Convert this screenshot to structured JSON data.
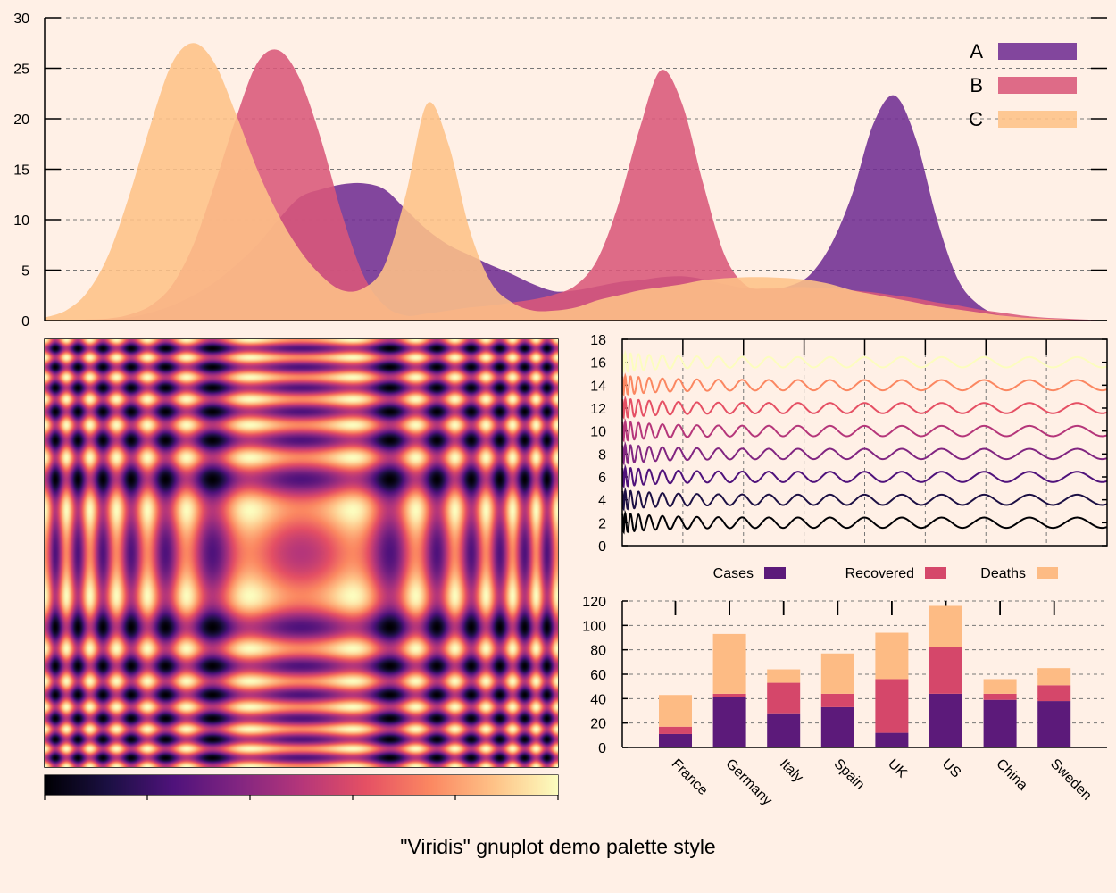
{
  "title": "\"Viridis\" gnuplot demo palette style",
  "palette": {
    "stops": [
      "#000004",
      "#1c1044",
      "#4f127b",
      "#812581",
      "#b5367a",
      "#e55064",
      "#fb8761",
      "#fec287",
      "#fcfdbf"
    ],
    "background": "#fff0e6"
  },
  "chart_data": [
    {
      "type": "area",
      "name": "density-plot",
      "title": "",
      "xlim": [
        0,
        100
      ],
      "ylim": [
        0,
        30
      ],
      "yticks": [
        0,
        5,
        10,
        15,
        20,
        25,
        30
      ],
      "grid": true,
      "legend_position": "top-right",
      "x": [
        0,
        2,
        4,
        6,
        8,
        10,
        12,
        14,
        16,
        18,
        20,
        22,
        24,
        26,
        28,
        30,
        32,
        34,
        36,
        38,
        40,
        42,
        44,
        46,
        48,
        50,
        52,
        54,
        56,
        58,
        60,
        62,
        64,
        66,
        68,
        70,
        72,
        74,
        76,
        78,
        80,
        82,
        84,
        86,
        88,
        90,
        92,
        94,
        96,
        98,
        100
      ],
      "series": [
        {
          "name": "A",
          "color": "#712e93",
          "values": [
            0,
            0,
            0,
            0.1,
            0.3,
            0.8,
            1.5,
            2.5,
            3.8,
            5.5,
            7.5,
            10.0,
            12.2,
            13.0,
            13.5,
            13.6,
            13.0,
            11.0,
            9.0,
            7.5,
            6.5,
            5.5,
            4.6,
            3.6,
            2.9,
            3.0,
            3.4,
            3.8,
            4.0,
            4.3,
            4.4,
            4.1,
            3.6,
            3.2,
            3.1,
            3.4,
            4.5,
            7.5,
            12.5,
            19.5,
            22.3,
            18.0,
            10.0,
            4.0,
            1.5,
            0.5,
            0.3,
            0.2,
            0.1,
            0,
            0
          ]
        },
        {
          "name": "B",
          "color": "#d9587a",
          "values": [
            0,
            0,
            0.1,
            0.2,
            0.6,
            1.5,
            3.5,
            7.5,
            13.5,
            20.0,
            25.5,
            26.8,
            24.0,
            18.0,
            10.5,
            4.5,
            1.5,
            0.5,
            0.7,
            1.0,
            1.3,
            1.5,
            1.8,
            2.1,
            2.6,
            3.5,
            6.0,
            11.5,
            19.0,
            24.8,
            21.5,
            13.5,
            6.5,
            3.5,
            3.2,
            3.3,
            3.3,
            3.2,
            3.0,
            2.8,
            2.5,
            2.2,
            1.8,
            1.5,
            1.1,
            0.8,
            0.5,
            0.3,
            0.2,
            0.1,
            0
          ]
        },
        {
          "name": "C",
          "color": "#fec287",
          "values": [
            0.3,
            1.0,
            2.8,
            6.5,
            12.5,
            19.5,
            25.5,
            27.5,
            25.5,
            20.5,
            15.0,
            10.5,
            7.0,
            4.5,
            3.0,
            3.2,
            5.5,
            12.5,
            21.5,
            17.5,
            9.0,
            3.8,
            1.8,
            1.0,
            1.0,
            1.3,
            2.0,
            2.5,
            3.0,
            3.3,
            3.6,
            4.0,
            4.2,
            4.3,
            4.3,
            4.2,
            4.0,
            3.6,
            3.0,
            2.6,
            2.2,
            1.8,
            1.4,
            1.1,
            0.8,
            0.5,
            0.3,
            0.2,
            0.1,
            0,
            0
          ]
        }
      ]
    },
    {
      "type": "heatmap",
      "name": "interference-pattern",
      "title": "",
      "function": "sin(x^2+y^2) interference rings",
      "colorbar": true
    },
    {
      "type": "line",
      "name": "damped-oscillations",
      "title": "",
      "xlim": [
        0,
        100
      ],
      "ylim": [
        0,
        18
      ],
      "yticks": [
        0,
        2,
        4,
        6,
        8,
        10,
        12,
        14,
        16,
        18
      ],
      "series": [
        {
          "name": "2",
          "offset": 2,
          "color": "#000004"
        },
        {
          "name": "4",
          "offset": 4,
          "color": "#1c1044"
        },
        {
          "name": "6",
          "offset": 6,
          "color": "#4f127b"
        },
        {
          "name": "8",
          "offset": 8,
          "color": "#812581"
        },
        {
          "name": "10",
          "offset": 10,
          "color": "#b5367a"
        },
        {
          "name": "12",
          "offset": 12,
          "color": "#e55064"
        },
        {
          "name": "14",
          "offset": 14,
          "color": "#fb8761"
        },
        {
          "name": "16",
          "offset": 16,
          "color": "#fcfdbf"
        }
      ]
    },
    {
      "type": "bar",
      "name": "stacked-bars",
      "title": "",
      "stacked": true,
      "categories": [
        "France",
        "Germany",
        "Italy",
        "Spain",
        "UK",
        "US",
        "China",
        "Sweden"
      ],
      "ylim": [
        0,
        120
      ],
      "yticks": [
        0,
        20,
        40,
        60,
        80,
        100,
        120
      ],
      "legend_position": "top",
      "series": [
        {
          "name": "Cases",
          "color": "#5c1a7a",
          "values": [
            11,
            41,
            28,
            33,
            12,
            44,
            39,
            38
          ]
        },
        {
          "name": "Recovered",
          "color": "#d5476a",
          "values": [
            6,
            3,
            25,
            11,
            44,
            38,
            5,
            13
          ]
        },
        {
          "name": "Deaths",
          "color": "#fdbb84",
          "values": [
            26,
            49,
            11,
            33,
            38,
            34,
            12,
            14
          ]
        }
      ]
    }
  ]
}
